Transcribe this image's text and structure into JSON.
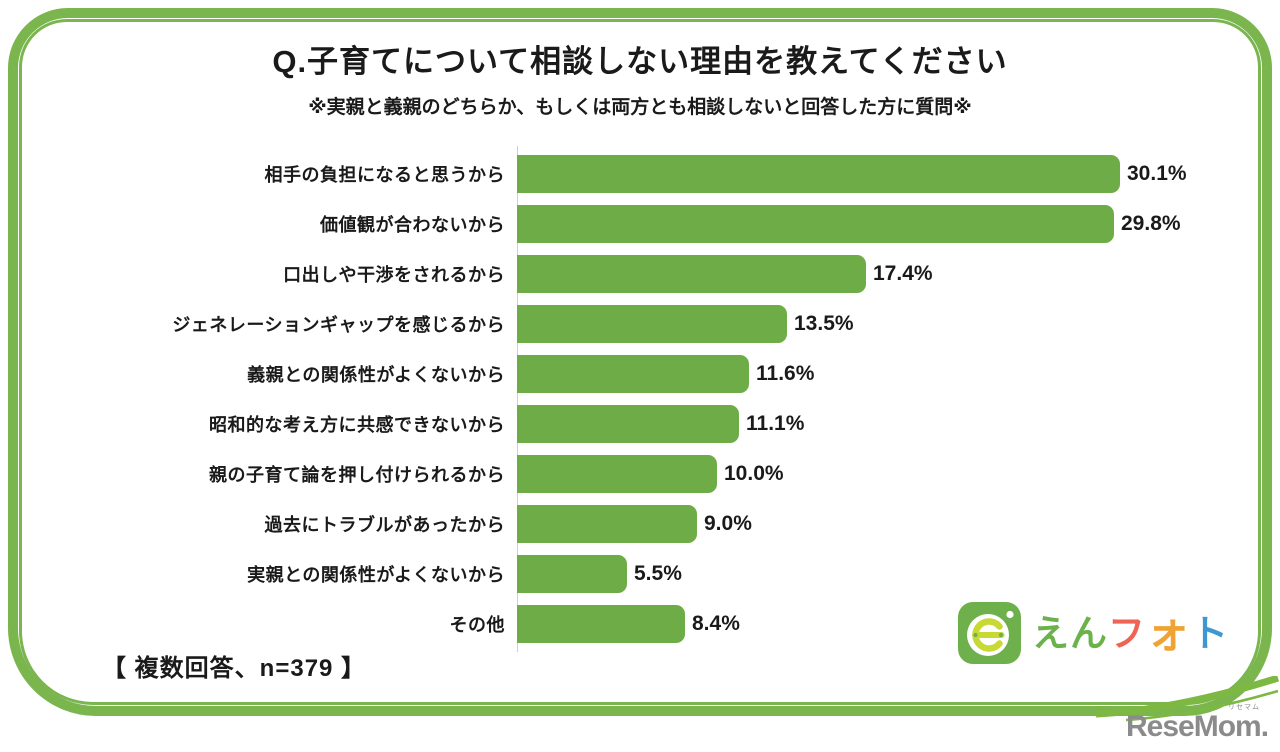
{
  "frame": {
    "color": "#7ab64d"
  },
  "chart_data": {
    "type": "bar",
    "orientation": "horizontal",
    "title": "Q.子育てについて相談しない理由を教えてください",
    "subtitle": "※実親と義親のどちらか、もしくは両方とも相談しないと回答した方に質問※",
    "categories": [
      "相手の負担になると思うから",
      "価値観が合わないから",
      "口出しや干渉をされるから",
      "ジェネレーションギャップを感じるから",
      "義親との関係性がよくないから",
      "昭和的な考え方に共感できないから",
      "親の子育て論を押し付けられるから",
      "過去にトラブルがあったから",
      "実親との関係性がよくないから",
      "その他"
    ],
    "values": [
      30.1,
      29.8,
      17.4,
      13.5,
      11.6,
      11.1,
      10.0,
      9.0,
      5.5,
      8.4
    ],
    "value_labels": [
      "30.1%",
      "29.8%",
      "17.4%",
      "13.5%",
      "11.6%",
      "11.1%",
      "10.0%",
      "9.0%",
      "5.5%",
      "8.4%"
    ],
    "bar_color": "#6dac47",
    "axis_line_color": "#cfcfcf",
    "grid": false,
    "legend": false,
    "data_labels_position": "outside-end"
  },
  "footnote": {
    "text": "【 複数回答、n=379 】"
  },
  "logos": {
    "enphoto": {
      "name": "えんフォト",
      "icon_color": "#6db04c",
      "icon_e_color": "#c8d934",
      "segments": [
        {
          "text": "えん",
          "color": "#6cb24b"
        },
        {
          "text": "フ",
          "color": "#ee6455"
        },
        {
          "text": "ォ",
          "color": "#f0a233"
        },
        {
          "text": "ト",
          "color": "#3d97d3"
        }
      ]
    },
    "resemom": {
      "text": "ReseMom.",
      "ruby": "リセマム",
      "text_color": "#8b8b8b",
      "swoosh_color": "#7db843"
    }
  }
}
